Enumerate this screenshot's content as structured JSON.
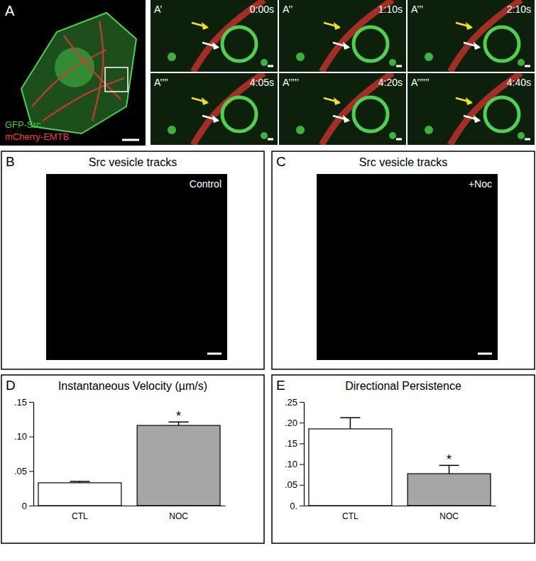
{
  "panels": {
    "A": {
      "label": "A",
      "channels": [
        "GFP-Src",
        "mCherry-EMTB"
      ]
    },
    "timelapse": [
      {
        "label": "A’",
        "time": "0:00s"
      },
      {
        "label": "A’’",
        "time": "1:10s"
      },
      {
        "label": "A’’’",
        "time": "2:10s"
      },
      {
        "label": "A’’’’",
        "time": "4:05s"
      },
      {
        "label": "A’’’’’",
        "time": "4:20s"
      },
      {
        "label": "A’’’’’’",
        "time": "4:40s"
      }
    ],
    "B": {
      "label": "B",
      "title": "Src vesicle tracks",
      "condition": "Control"
    },
    "C": {
      "label": "C",
      "title": "Src vesicle tracks",
      "condition": "+Noc"
    }
  },
  "chart_data": [
    {
      "type": "bar",
      "panel_label": "D",
      "title": "Instantaneous Velocity (µm/s)",
      "categories": [
        "CTL",
        "NOC"
      ],
      "values": [
        0.033,
        0.116
      ],
      "errors": [
        0.002,
        0.005
      ],
      "colors": [
        "#ffffff",
        "#a6a6a6"
      ],
      "annotations": [
        null,
        "*"
      ],
      "ylim": [
        0,
        0.15
      ],
      "yticks": [
        0,
        {
          "value": 0.05,
          "label": ".05"
        },
        {
          "value": 0.1,
          "label": ".10"
        },
        {
          "value": 0.15,
          "label": ".15"
        }
      ]
    },
    {
      "type": "bar",
      "panel_label": "E",
      "title": "Directional Persistence",
      "categories": [
        "CTL",
        "NOC"
      ],
      "values": [
        0.185,
        0.077
      ],
      "errors": [
        0.027,
        0.02
      ],
      "colors": [
        "#ffffff",
        "#a6a6a6"
      ],
      "annotations": [
        null,
        "*"
      ],
      "ylim": [
        0,
        0.25
      ],
      "yticks": [
        {
          "value": 0,
          "label": "0."
        },
        {
          "value": 0.05,
          "label": ".05"
        },
        {
          "value": 0.1,
          "label": ".10"
        },
        {
          "value": 0.15,
          "label": ".15"
        },
        {
          "value": 0.2,
          "label": ".20"
        },
        {
          "value": 0.25,
          "label": ".25"
        }
      ]
    }
  ]
}
